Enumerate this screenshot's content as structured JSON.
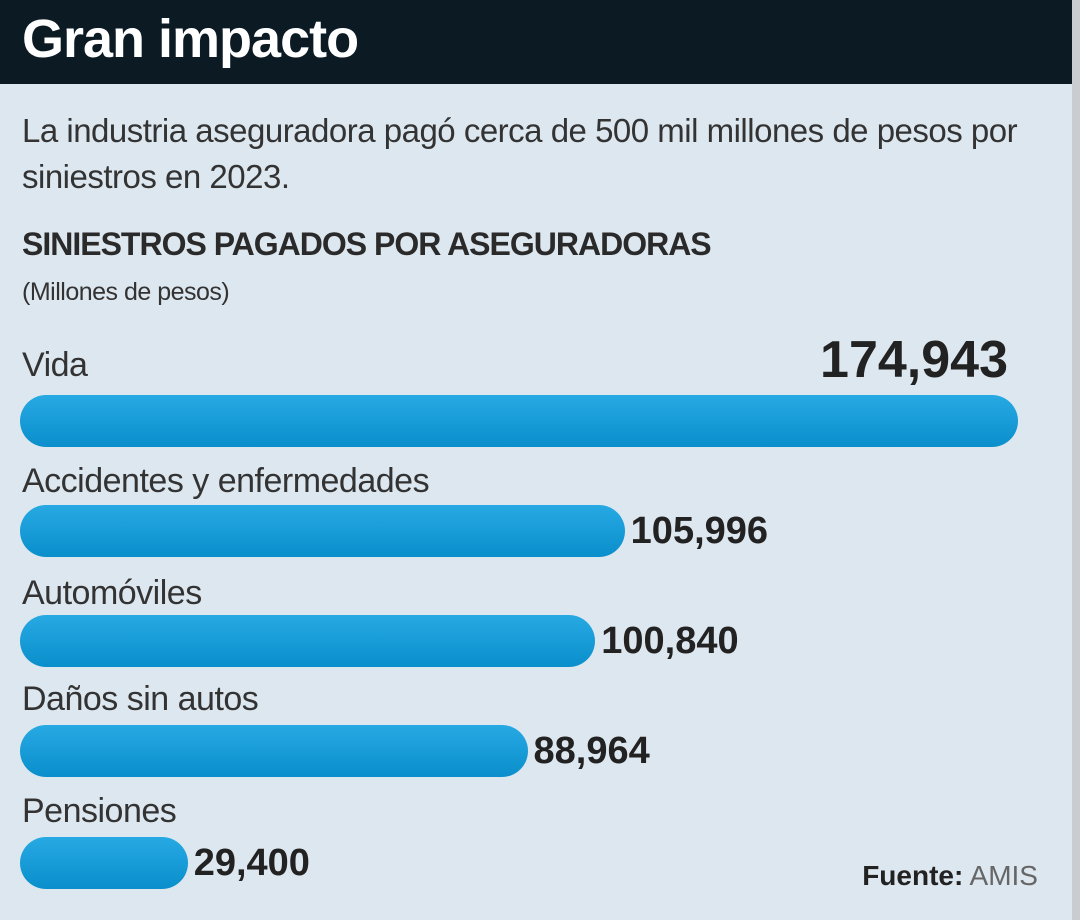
{
  "header": {
    "title": "Gran impacto"
  },
  "subtitle": "La industria aseguradora pagó cerca de 500 mil millones de pesos por siniestros en 2023.",
  "chart_data": {
    "type": "bar",
    "orientation": "horizontal",
    "title": "SINIESTROS PAGADOS POR ASEGURADORAS",
    "units": "(Millones de pesos)",
    "categories": [
      "Vida",
      "Accidentes y enfermedades",
      "Automóviles",
      "Daños sin autos",
      "Pensiones"
    ],
    "values": [
      174943,
      105996,
      100840,
      88964,
      29400
    ],
    "value_labels": [
      "174,943",
      "105,996",
      "100,840",
      "88,964",
      "29,400"
    ],
    "xlim": [
      0,
      174943
    ],
    "color": "#1a9fd8"
  },
  "source": {
    "label": "Fuente:",
    "value": "AMIS"
  }
}
